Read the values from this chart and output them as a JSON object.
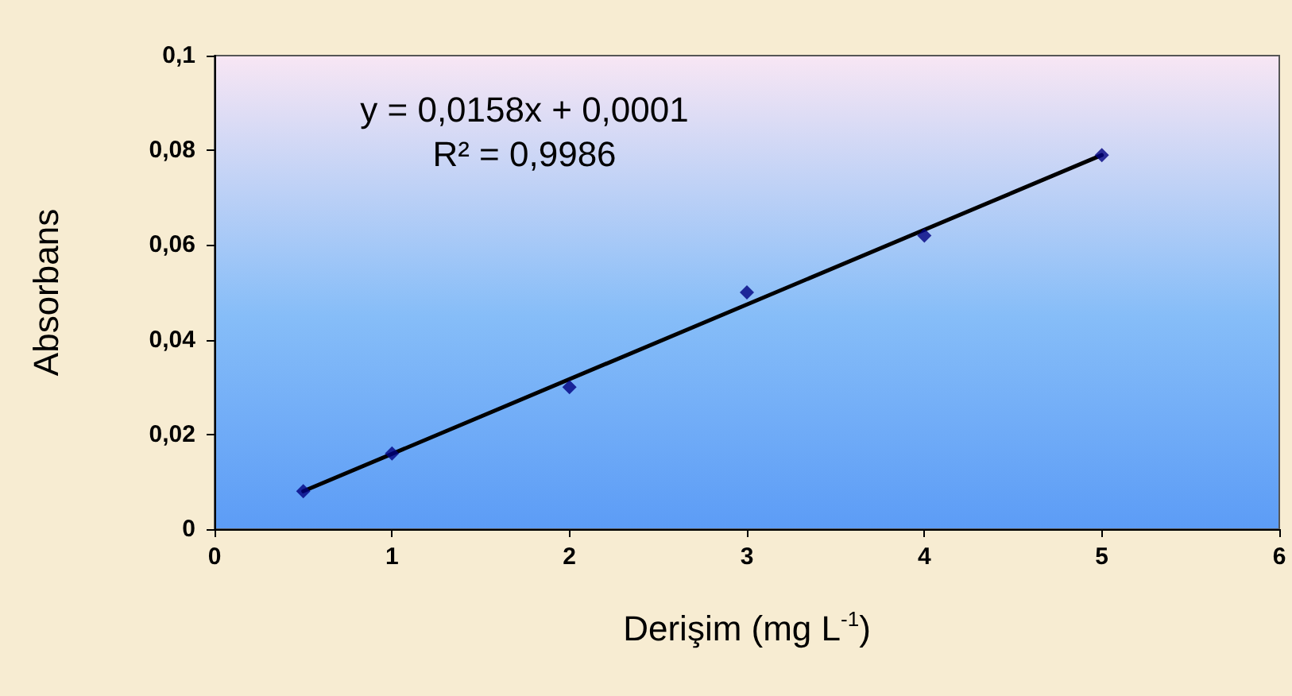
{
  "chart_data": {
    "type": "scatter",
    "xlabel": "Derişim (mg L$^{-1}$)",
    "ylabel": "Absorbans",
    "annotations": [
      "y = 0,0158x + 0,0001",
      "R² = 0,9986"
    ],
    "xlim": [
      0,
      6
    ],
    "xticks": [
      0,
      1,
      2,
      3,
      4,
      5,
      6
    ],
    "ylim": [
      0,
      0.1
    ],
    "yticks": [
      0,
      {
        "value": 0.02,
        "label": "0,02"
      },
      {
        "value": 0.04,
        "label": "0,04"
      },
      {
        "value": 0.06,
        "label": "0,06"
      },
      {
        "value": 0.08,
        "label": "0,08"
      },
      {
        "value": 0.1,
        "label": "0,1"
      }
    ],
    "grid": false,
    "marker": "diamond",
    "series": [
      {
        "type": "scatter",
        "color": "#000080",
        "x": [
          0.5,
          1,
          2,
          3,
          4,
          5
        ],
        "values": [
          0.008,
          0.016,
          0.03,
          0.05,
          0.062,
          0.079
        ]
      },
      {
        "type": "line",
        "color": "#000000",
        "marker": "none",
        "x": [
          0.5,
          5
        ],
        "values": [
          0.008,
          0.079
        ]
      }
    ]
  }
}
